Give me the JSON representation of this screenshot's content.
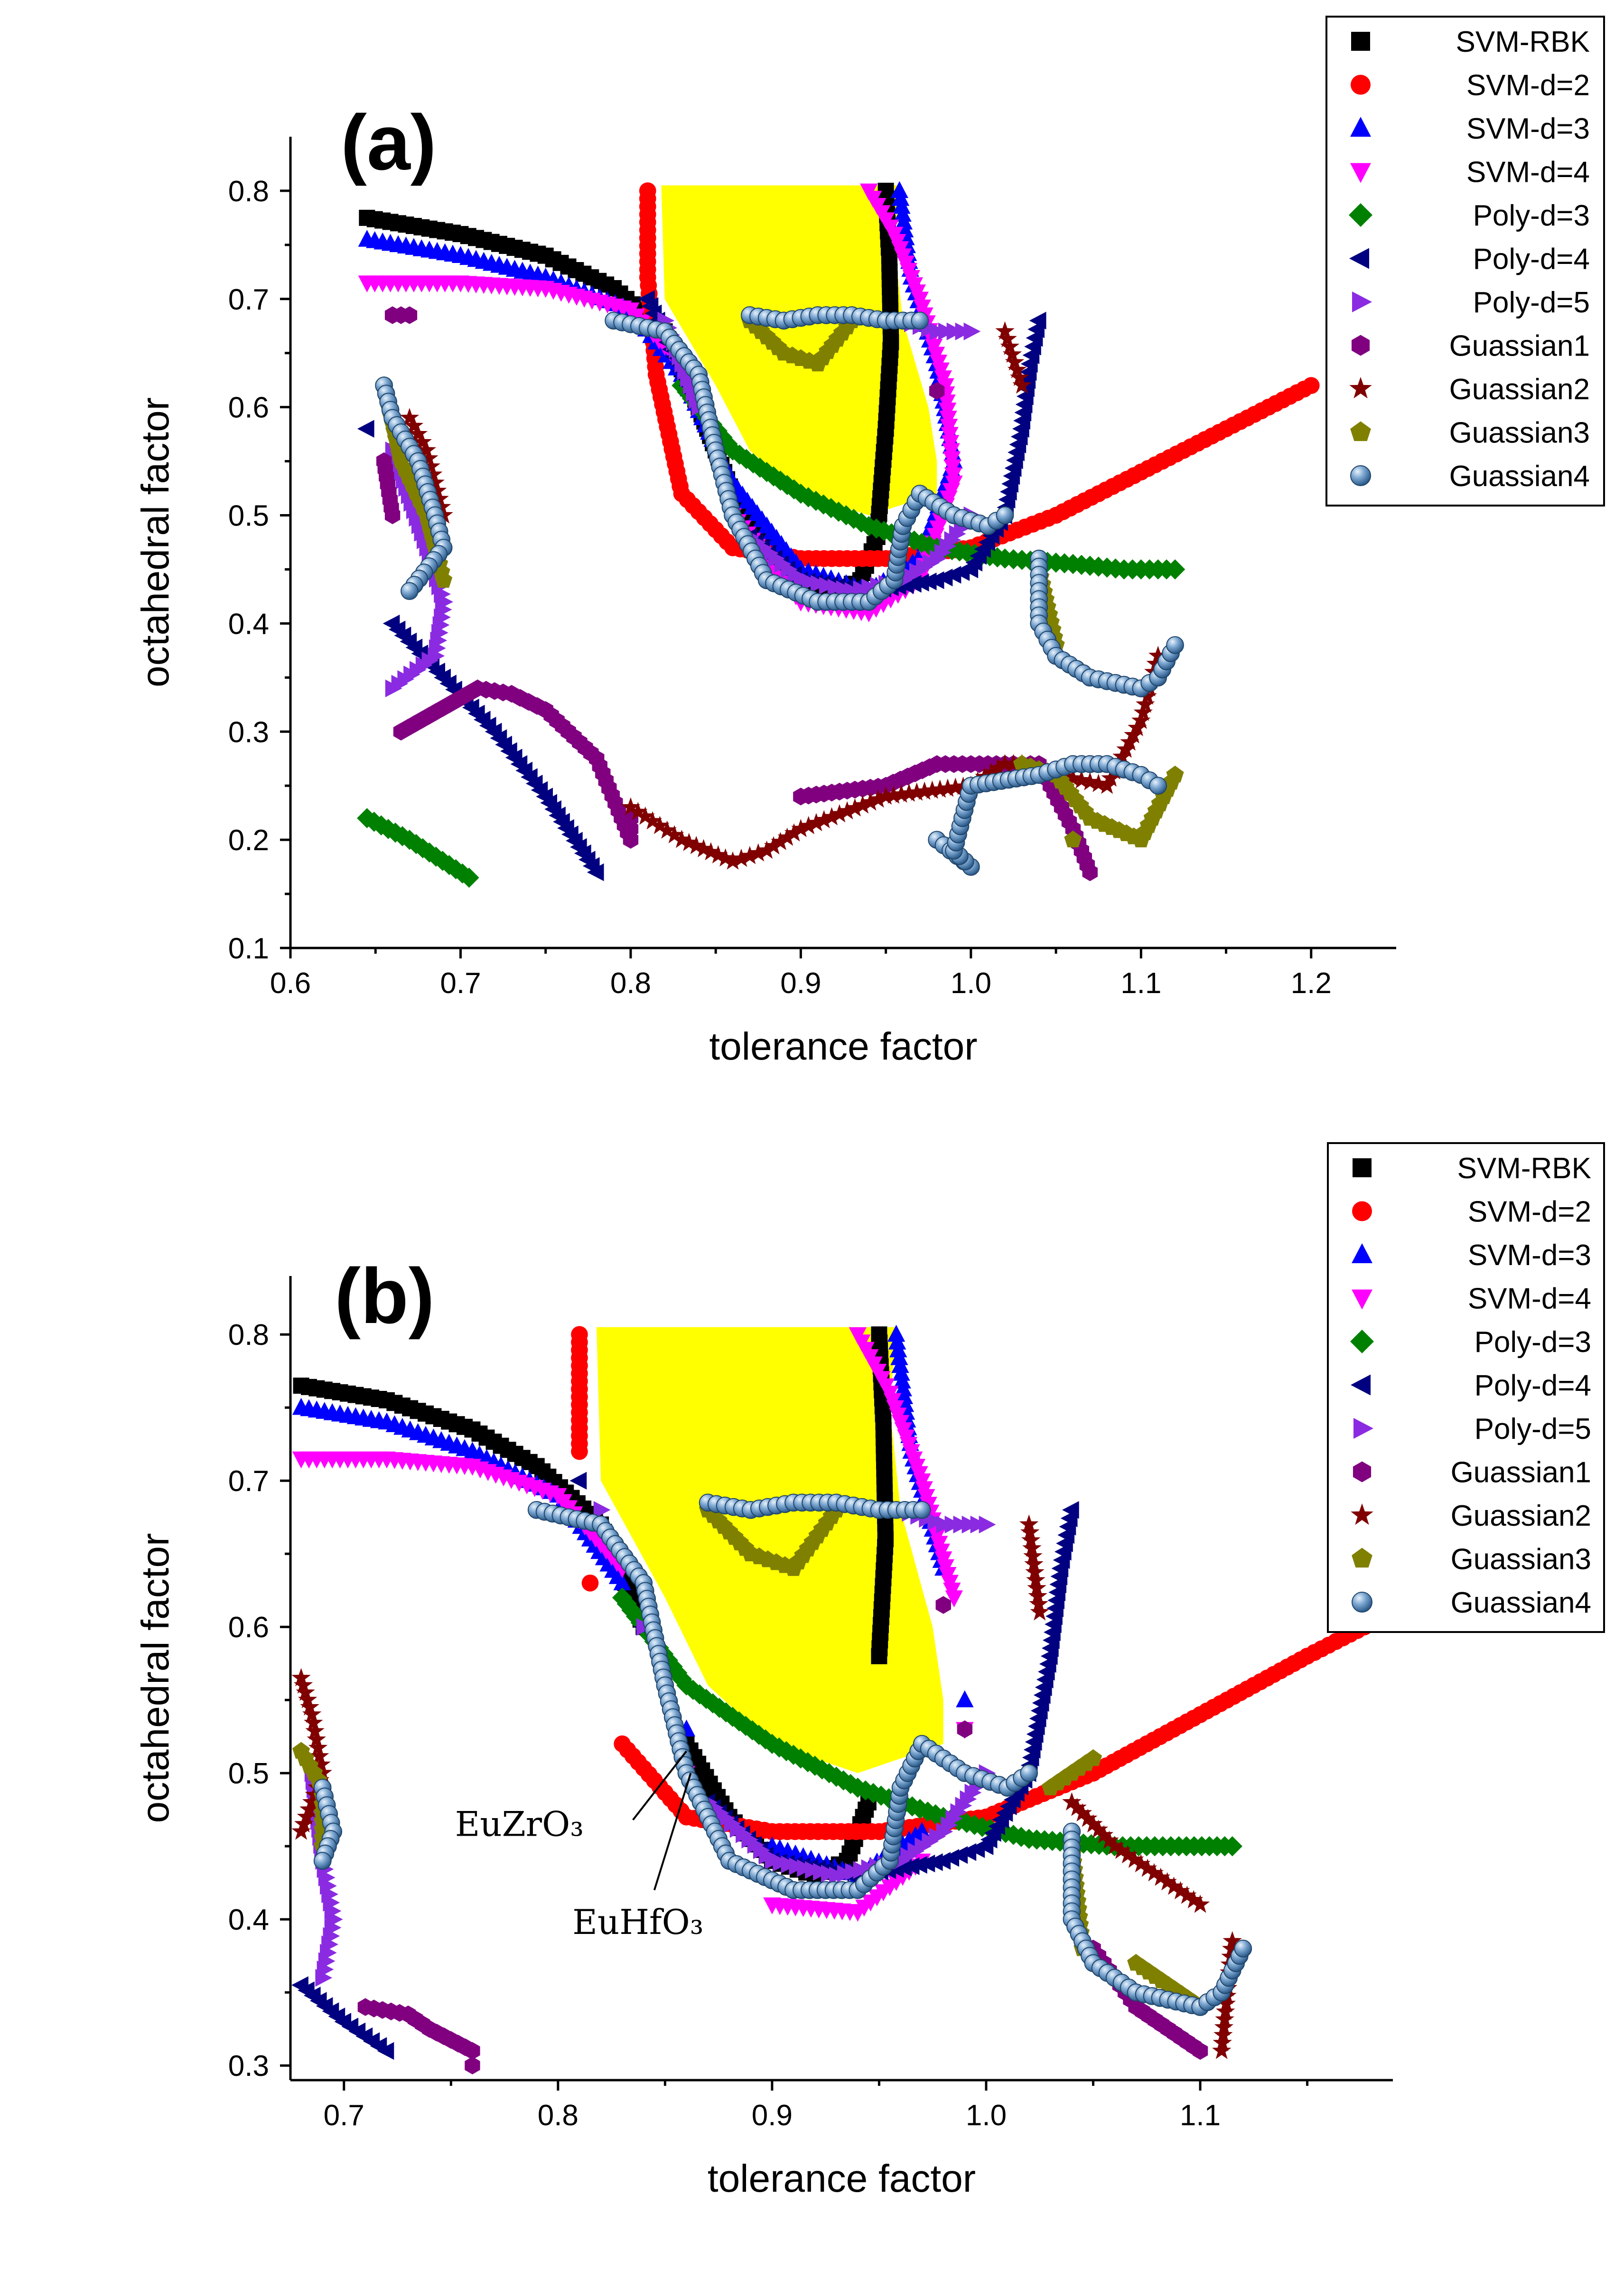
{
  "colors": {
    "yellow_region": "#ffff00",
    "series": {
      "SVM-RBK": "#000000",
      "SVM-d=2": "#ff0000",
      "SVM-d=3": "#0000ff",
      "SVM-d=4": "#ff00ff",
      "Poly-d=3": "#008000",
      "Poly-d=4": "#000080",
      "Poly-d=5": "#8a2be2",
      "Guassian1": "#800080",
      "Guassian2": "#800000",
      "Guassian3": "#808000",
      "Guassian4": "#4a7fb5"
    }
  },
  "chart_data": [
    {
      "panel": "(a)",
      "type": "scatter",
      "xlabel": "tolerance factor",
      "ylabel": "octahedral factor",
      "xlim": [
        0.6,
        1.25
      ],
      "ylim": [
        0.1,
        0.85
      ],
      "xticks": [
        "0.6",
        "0.7",
        "0.8",
        "0.9",
        "1.0",
        "1.1",
        "1.2"
      ],
      "yticks": [
        "0.1",
        "0.2",
        "0.3",
        "0.4",
        "0.5",
        "0.6",
        "0.7",
        "0.8"
      ],
      "legend": [
        "SVM-RBK",
        "SVM-d=2",
        "SVM-d=3",
        "SVM-d=4",
        "Poly-d=3",
        "Poly-d=4",
        "Poly-d=5",
        "Guassian1",
        "Guassian2",
        "Guassian3",
        "Guassian4"
      ],
      "legend_position": "top-right",
      "series": [
        {
          "name": "SVM-RBK",
          "marker": "square",
          "x": [
            0.645,
            0.7,
            0.75,
            0.79,
            0.82,
            0.84,
            0.86,
            0.88,
            0.9,
            0.92,
            0.935,
            0.945,
            0.95,
            0.953,
            0.952,
            0.95
          ],
          "y": [
            0.775,
            0.76,
            0.74,
            0.71,
            0.67,
            0.6,
            0.52,
            0.47,
            0.44,
            0.43,
            0.44,
            0.48,
            0.58,
            0.66,
            0.74,
            0.8
          ]
        },
        {
          "name": "SVM-d=2",
          "marker": "circle",
          "x": [
            0.81,
            0.81,
            0.815,
            0.83,
            0.86,
            0.9,
            0.95,
            1.0,
            1.05,
            1.1,
            1.15,
            1.2
          ],
          "y": [
            0.8,
            0.72,
            0.63,
            0.52,
            0.47,
            0.46,
            0.46,
            0.47,
            0.5,
            0.54,
            0.58,
            0.62
          ]
        },
        {
          "name": "SVM-d=3",
          "marker": "tri-up",
          "x": [
            0.645,
            0.7,
            0.75,
            0.8,
            0.83,
            0.86,
            0.9,
            0.94,
            0.97,
            0.99,
            0.98,
            0.965,
            0.958
          ],
          "y": [
            0.755,
            0.74,
            0.72,
            0.69,
            0.63,
            0.53,
            0.45,
            0.43,
            0.46,
            0.55,
            0.64,
            0.72,
            0.8
          ]
        },
        {
          "name": "SVM-d=4",
          "marker": "tri-down",
          "x": [
            0.645,
            0.7,
            0.75,
            0.8,
            0.83,
            0.86,
            0.9,
            0.94,
            0.97,
            0.99,
            0.985,
            0.97,
            0.955,
            0.94
          ],
          "y": [
            0.715,
            0.715,
            0.71,
            0.69,
            0.64,
            0.5,
            0.42,
            0.41,
            0.44,
            0.53,
            0.62,
            0.7,
            0.76,
            0.8
          ]
        },
        {
          "name": "Poly-d=3",
          "marker": "diamond",
          "x": [
            0.83,
            0.86,
            0.9,
            0.94,
            0.98,
            1.02,
            1.06,
            1.09,
            1.12,
            0.645,
            0.67,
            0.705
          ],
          "y": [
            0.62,
            0.56,
            0.52,
            0.49,
            0.47,
            0.46,
            0.455,
            0.45,
            0.45,
            0.22,
            0.2,
            0.165
          ]
        },
        {
          "name": "Poly-d=4",
          "marker": "tri-left",
          "x": [
            0.81,
            0.84,
            0.87,
            0.9,
            0.94,
            0.98,
            1.0,
            1.02,
            1.03,
            1.035,
            1.04,
            0.645,
            0.66,
            0.69,
            0.72,
            0.75,
            0.78
          ],
          "y": [
            0.7,
            0.6,
            0.48,
            0.44,
            0.43,
            0.44,
            0.45,
            0.5,
            0.58,
            0.64,
            0.68,
            0.58,
            0.4,
            0.35,
            0.3,
            0.24,
            0.17
          ]
        },
        {
          "name": "Poly-d=5",
          "marker": "tri-right",
          "x": [
            0.82,
            0.84,
            0.87,
            0.9,
            0.93,
            0.96,
            0.98,
            1.0,
            0.96,
            0.98,
            1.0,
            0.66,
            0.68,
            0.69,
            0.685,
            0.66
          ],
          "y": [
            0.68,
            0.6,
            0.48,
            0.44,
            0.43,
            0.44,
            0.46,
            0.5,
            0.68,
            0.67,
            0.67,
            0.56,
            0.47,
            0.42,
            0.37,
            0.34
          ]
        },
        {
          "name": "Guassian1",
          "marker": "hexagon",
          "x": [
            0.66,
            0.67,
            0.655,
            0.66,
            0.665,
            0.71,
            0.73,
            0.75,
            0.78,
            0.8,
            0.8,
            0.9,
            0.95,
            0.98,
            1.0,
            1.04,
            1.06,
            1.07,
            0.98
          ],
          "y": [
            0.685,
            0.685,
            0.55,
            0.5,
            0.3,
            0.34,
            0.335,
            0.32,
            0.275,
            0.2,
            0.22,
            0.24,
            0.25,
            0.27,
            0.27,
            0.27,
            0.21,
            0.17,
            0.615
          ]
        },
        {
          "name": "Guassian2",
          "marker": "star",
          "x": [
            0.67,
            0.68,
            0.69,
            0.8,
            0.83,
            0.86,
            0.88,
            0.9,
            0.95,
            1.0,
            1.02,
            1.03,
            1.05,
            1.08,
            1.1,
            1.11,
            1.02,
            1.03
          ],
          "y": [
            0.59,
            0.56,
            0.5,
            0.23,
            0.2,
            0.18,
            0.19,
            0.21,
            0.24,
            0.25,
            0.27,
            0.27,
            0.26,
            0.25,
            0.31,
            0.37,
            0.67,
            0.62
          ]
        },
        {
          "name": "Guassian3",
          "marker": "pentagon",
          "x": [
            0.655,
            0.665,
            0.68,
            0.69,
            0.87,
            0.89,
            0.91,
            0.93,
            1.03,
            1.05,
            1.07,
            1.1,
            1.12,
            1.04,
            1.05,
            1.06
          ],
          "y": [
            0.62,
            0.55,
            0.5,
            0.44,
            0.68,
            0.65,
            0.64,
            0.68,
            0.27,
            0.26,
            0.22,
            0.2,
            0.26,
            0.45,
            0.38,
            0.2
          ]
        },
        {
          "name": "Guassian4",
          "marker": "sphere",
          "x": [
            0.79,
            0.82,
            0.84,
            0.85,
            0.86,
            0.88,
            0.91,
            0.94,
            0.955,
            0.96,
            0.97,
            0.99,
            1.01,
            1.02,
            0.87,
            0.89,
            0.91,
            0.93,
            0.95,
            0.97,
            1.04,
            1.04,
            1.05,
            1.07,
            1.1,
            1.11,
            1.12,
            0.655,
            0.66,
            0.675,
            0.685,
            0.69,
            0.67,
            0.98,
            1.0,
            0.99,
            1.0,
            1.04,
            1.06,
            1.08,
            1.1,
            1.11
          ],
          "y": [
            0.68,
            0.67,
            0.63,
            0.56,
            0.5,
            0.44,
            0.42,
            0.42,
            0.44,
            0.49,
            0.52,
            0.5,
            0.49,
            0.5,
            0.685,
            0.68,
            0.685,
            0.685,
            0.68,
            0.68,
            0.46,
            0.4,
            0.37,
            0.35,
            0.34,
            0.35,
            0.38,
            0.62,
            0.59,
            0.55,
            0.5,
            0.47,
            0.43,
            0.2,
            0.175,
            0.19,
            0.25,
            0.26,
            0.27,
            0.27,
            0.26,
            0.25
          ]
        }
      ]
    },
    {
      "panel": "(b)",
      "type": "scatter",
      "xlabel": "tolerance factor",
      "ylabel": "octahedral factor",
      "xlim": [
        0.675,
        1.19
      ],
      "ylim": [
        0.29,
        0.84
      ],
      "xticks": [
        "0.7",
        "0.8",
        "0.9",
        "1.0",
        "1.1"
      ],
      "yticks": [
        "0.3",
        "0.4",
        "0.5",
        "0.6",
        "0.7",
        "0.8"
      ],
      "legend": [
        "SVM-RBK",
        "SVM-d=2",
        "SVM-d=3",
        "SVM-d=4",
        "Poly-d=3",
        "Poly-d=4",
        "Poly-d=5",
        "Guassian1",
        "Guassian2",
        "Guassian3",
        "Guassian4"
      ],
      "legend_position": "top-right",
      "annotations": [
        {
          "text": "EuZrO₃",
          "x": 0.86,
          "y": 0.515
        },
        {
          "text": "EuHfO₃",
          "x": 0.862,
          "y": 0.5
        }
      ],
      "series": [
        {
          "name": "SVM-RBK",
          "marker": "square",
          "x": [
            0.68,
            0.72,
            0.76,
            0.79,
            0.82,
            0.84,
            0.86,
            0.88,
            0.9,
            0.92,
            0.935,
            0.945,
            0.95,
            0.953,
            0.952,
            0.95
          ],
          "y": [
            0.765,
            0.755,
            0.735,
            0.71,
            0.67,
            0.6,
            0.52,
            0.47,
            0.44,
            0.43,
            0.44,
            0.48,
            0.58,
            0.66,
            0.74,
            0.8
          ]
        },
        {
          "name": "SVM-d=2",
          "marker": "circle",
          "x": [
            0.81,
            0.81,
            0.815,
            0.83,
            0.86,
            0.9,
            0.95,
            1.0,
            1.05,
            1.1,
            1.15,
            1.19
          ],
          "y": [
            0.8,
            0.72,
            0.63,
            0.52,
            0.47,
            0.46,
            0.46,
            0.47,
            0.5,
            0.54,
            0.58,
            0.61
          ]
        },
        {
          "name": "SVM-d=3",
          "marker": "tri-up",
          "x": [
            0.68,
            0.72,
            0.76,
            0.8,
            0.83,
            0.86,
            0.9,
            0.94,
            0.97,
            0.99,
            0.98,
            0.965,
            0.958
          ],
          "y": [
            0.75,
            0.74,
            0.72,
            0.69,
            0.63,
            0.53,
            0.45,
            0.43,
            0.46,
            0.55,
            0.64,
            0.72,
            0.8
          ]
        },
        {
          "name": "SVM-d=4",
          "marker": "tri-down",
          "x": [
            0.68,
            0.72,
            0.76,
            0.8,
            0.83,
            0.86,
            0.9,
            0.94,
            0.97,
            0.99,
            0.985,
            0.97,
            0.955,
            0.94
          ],
          "y": [
            0.715,
            0.715,
            0.71,
            0.69,
            0.64,
            0.5,
            0.41,
            0.405,
            0.44,
            0.53,
            0.62,
            0.7,
            0.76,
            0.8
          ]
        },
        {
          "name": "Poly-d=3",
          "marker": "diamond",
          "x": [
            0.83,
            0.86,
            0.9,
            0.94,
            0.98,
            1.02,
            1.06,
            1.09,
            1.115
          ],
          "y": [
            0.62,
            0.56,
            0.52,
            0.49,
            0.47,
            0.455,
            0.45,
            0.45,
            0.45
          ]
        },
        {
          "name": "Poly-d=4",
          "marker": "tri-left",
          "x": [
            0.81,
            0.84,
            0.87,
            0.9,
            0.94,
            0.98,
            1.0,
            1.02,
            1.03,
            1.035,
            1.04,
            0.68,
            0.7,
            0.72
          ],
          "y": [
            0.7,
            0.6,
            0.48,
            0.44,
            0.43,
            0.44,
            0.45,
            0.5,
            0.58,
            0.64,
            0.68,
            0.355,
            0.33,
            0.31
          ]
        },
        {
          "name": "Poly-d=5",
          "marker": "tri-right",
          "x": [
            0.82,
            0.84,
            0.87,
            0.9,
            0.93,
            0.96,
            0.98,
            1.0,
            0.96,
            0.98,
            1.0,
            0.685,
            0.69,
            0.695,
            0.69
          ],
          "y": [
            0.68,
            0.6,
            0.48,
            0.44,
            0.43,
            0.44,
            0.46,
            0.5,
            0.68,
            0.67,
            0.67,
            0.5,
            0.44,
            0.4,
            0.36
          ]
        },
        {
          "name": "Guassian1",
          "marker": "hexagon",
          "x": [
            0.71,
            0.73,
            0.74,
            0.76,
            0.76,
            0.98,
            0.99,
            1.05,
            1.06,
            1.07,
            1.1
          ],
          "y": [
            0.34,
            0.335,
            0.325,
            0.31,
            0.3,
            0.615,
            0.53,
            0.38,
            0.36,
            0.34,
            0.31
          ]
        },
        {
          "name": "Guassian2",
          "marker": "star",
          "x": [
            0.68,
            0.685,
            0.69,
            0.68,
            1.02,
            1.025,
            1.04,
            1.06,
            1.1,
            1.11,
            1.115
          ],
          "y": [
            0.565,
            0.54,
            0.5,
            0.46,
            0.67,
            0.61,
            0.48,
            0.45,
            0.41,
            0.31,
            0.385
          ]
        },
        {
          "name": "Guassian3",
          "marker": "pentagon",
          "x": [
            0.68,
            0.69,
            0.69,
            0.87,
            0.89,
            0.91,
            0.93,
            1.03,
            1.05,
            1.07,
            1.1,
            1.04,
            1.045
          ],
          "y": [
            0.515,
            0.49,
            0.45,
            0.68,
            0.65,
            0.64,
            0.68,
            0.49,
            0.51,
            0.37,
            0.34,
            0.45,
            0.38
          ]
        },
        {
          "name": "Guassian4",
          "marker": "sphere",
          "x": [
            0.79,
            0.82,
            0.84,
            0.85,
            0.86,
            0.88,
            0.91,
            0.94,
            0.955,
            0.96,
            0.97,
            0.99,
            1.01,
            1.02,
            0.87,
            0.89,
            0.91,
            0.93,
            0.95,
            0.97,
            1.04,
            1.04,
            1.05,
            1.07,
            1.1,
            1.11,
            1.12,
            0.69,
            0.695,
            0.69
          ],
          "y": [
            0.68,
            0.67,
            0.63,
            0.56,
            0.5,
            0.44,
            0.42,
            0.42,
            0.44,
            0.49,
            0.52,
            0.5,
            0.49,
            0.5,
            0.685,
            0.68,
            0.685,
            0.685,
            0.68,
            0.68,
            0.46,
            0.4,
            0.37,
            0.35,
            0.34,
            0.35,
            0.38,
            0.49,
            0.46,
            0.44
          ]
        }
      ]
    }
  ]
}
